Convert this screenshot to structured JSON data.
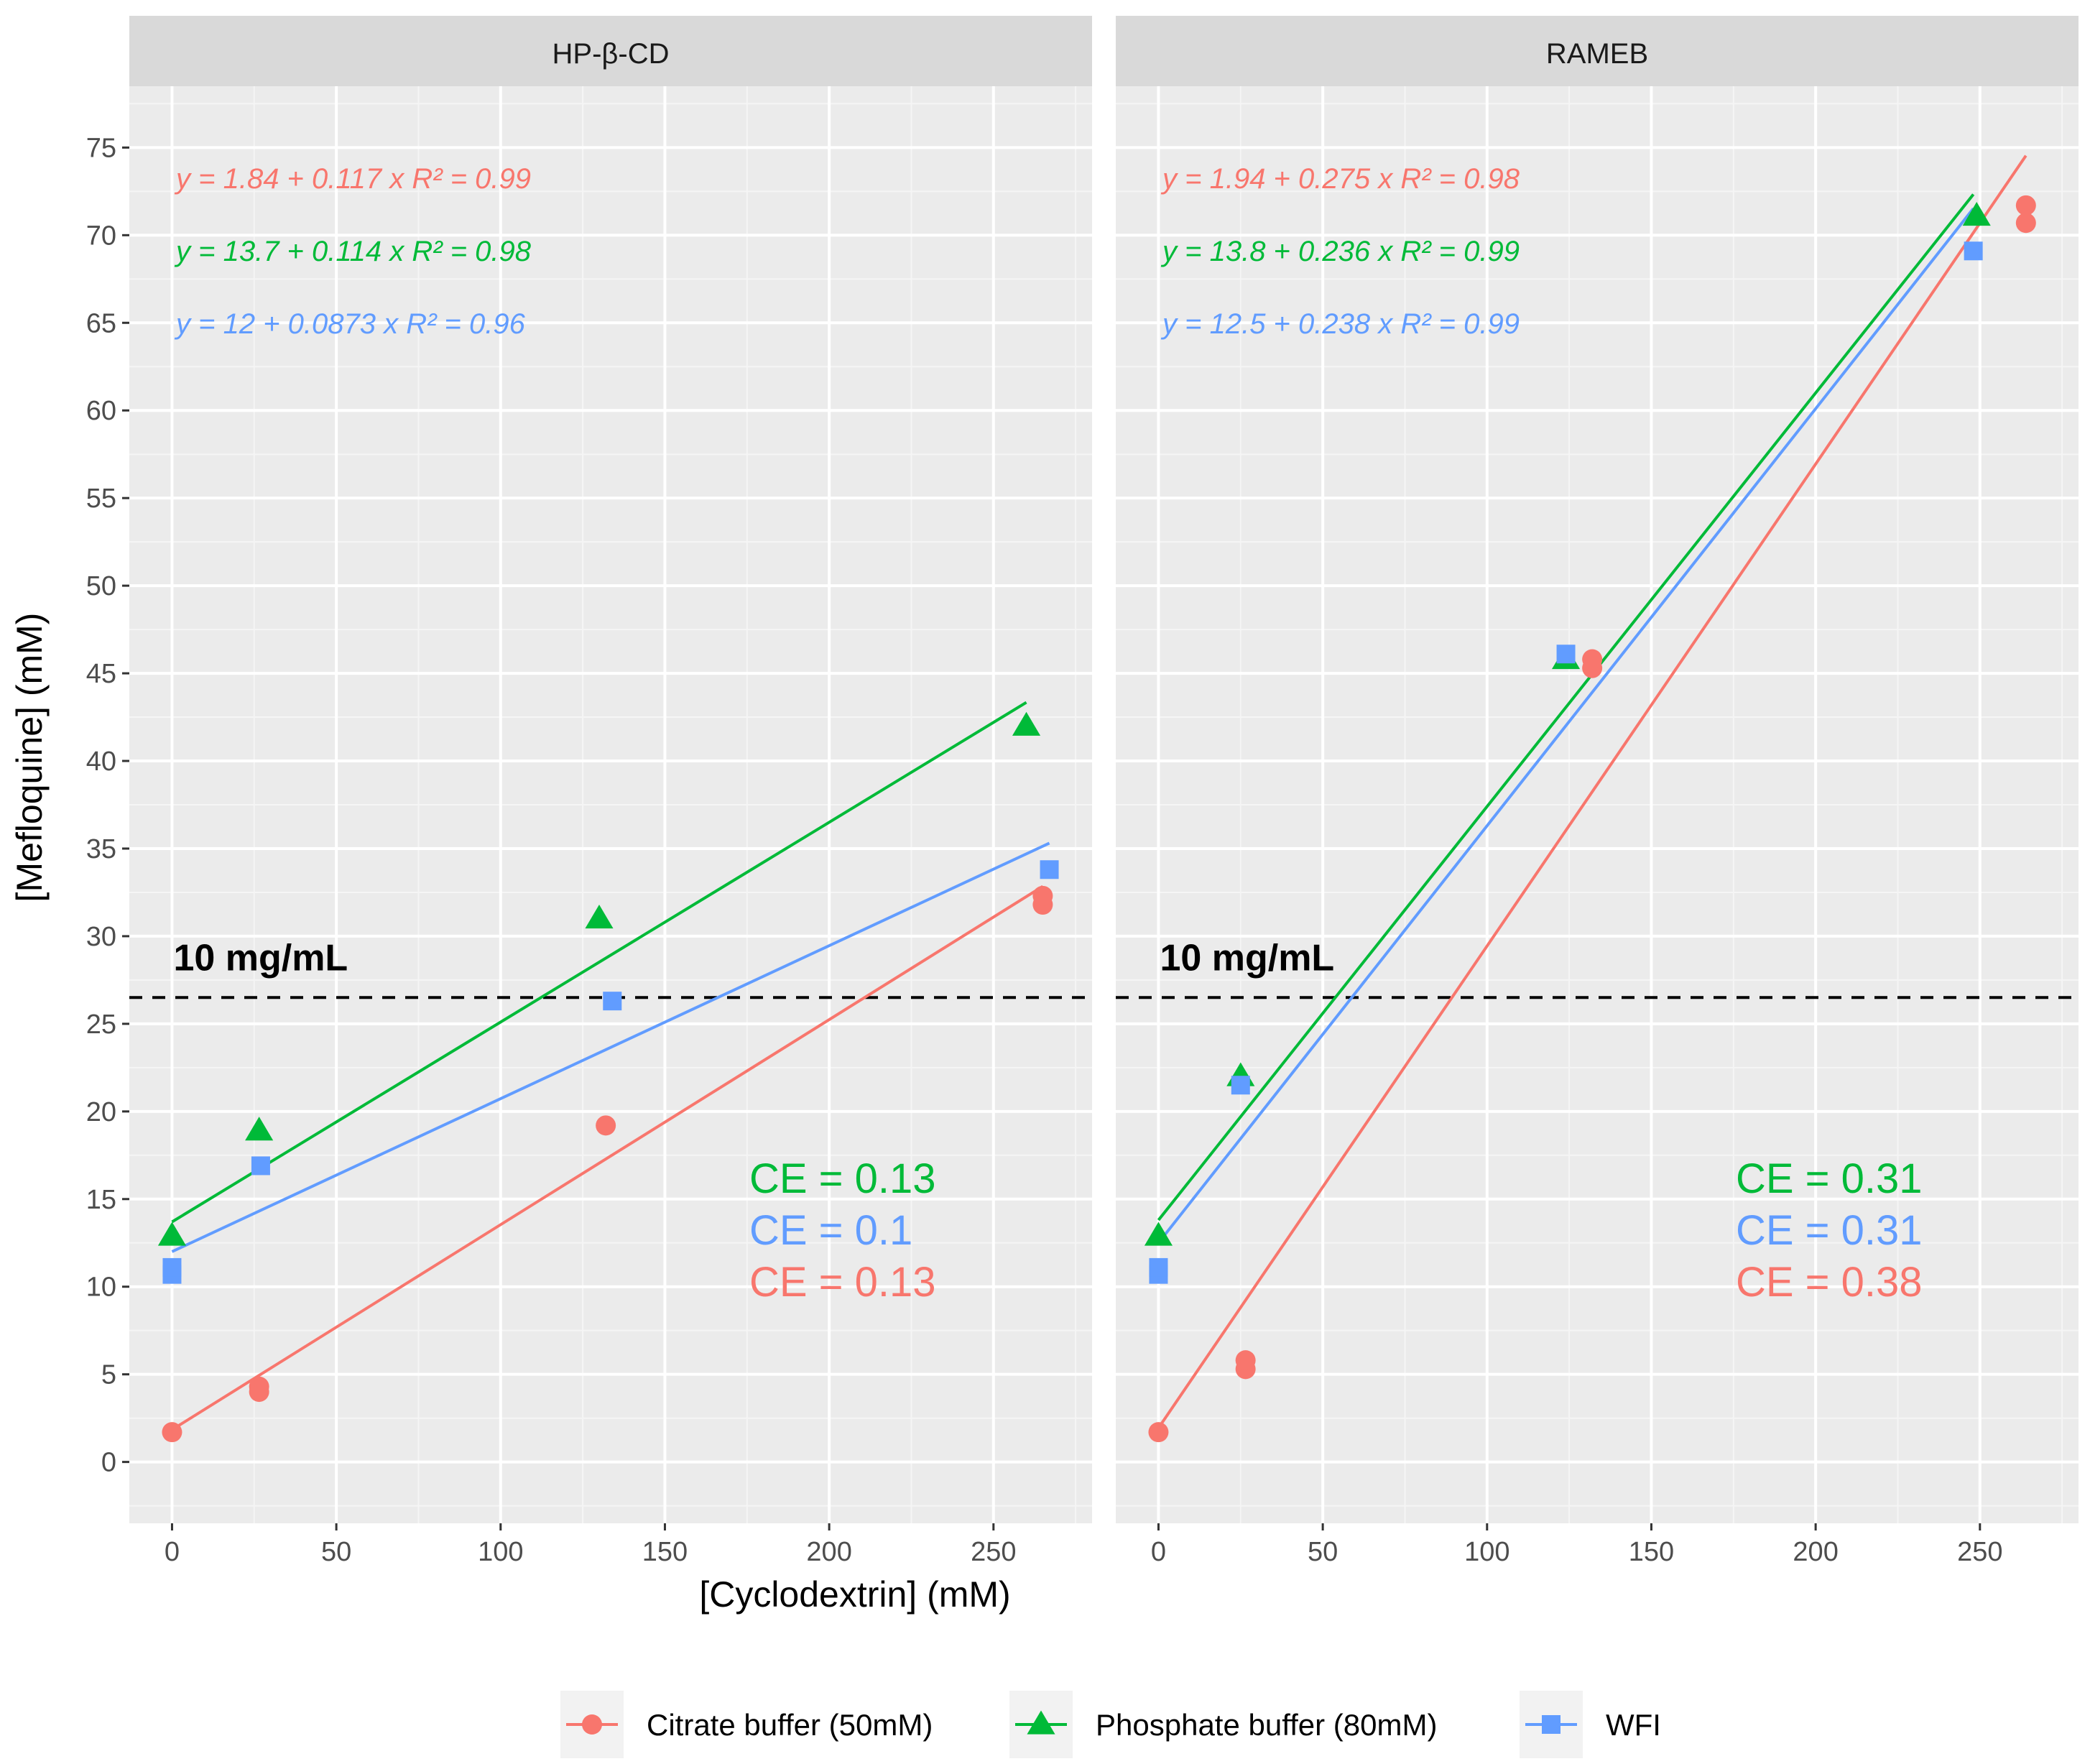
{
  "chart_data": {
    "type": "scatter",
    "xlabel": "[Cyclodextrin] (mM)",
    "ylabel": "[Mefloquine] (mM)",
    "xlim": [
      -13,
      280
    ],
    "ylim": [
      -3.5,
      78.5
    ],
    "xticks": [
      0,
      50,
      100,
      150,
      200,
      250
    ],
    "yticks": [
      0,
      5,
      10,
      15,
      20,
      25,
      30,
      35,
      40,
      45,
      50,
      55,
      60,
      65,
      70,
      75
    ],
    "xtick_labels": [
      "0",
      "50",
      "100",
      "150",
      "200",
      "250"
    ],
    "ytick_labels": [
      "0",
      "5",
      "10",
      "15",
      "20",
      "25",
      "30",
      "35",
      "40",
      "45",
      "50",
      "55",
      "60",
      "65",
      "70",
      "75"
    ],
    "grid": true,
    "legend": {
      "position": "bottom",
      "items": [
        {
          "name": "Citrate buffer (50mM)",
          "color": "#F8766D",
          "shape": "circle"
        },
        {
          "name": "Phosphate buffer (80mM)",
          "color": "#00BA38",
          "shape": "triangle"
        },
        {
          "name": "WFI",
          "color": "#619CFF",
          "shape": "square"
        }
      ]
    },
    "reference_line": {
      "y": 26.5,
      "label": "10 mg/mL",
      "style": "dashed"
    },
    "panels": [
      {
        "title": "HP-β-CD",
        "series": [
          {
            "name": "Citrate buffer (50mM)",
            "color": "#F8766D",
            "shape": "circle",
            "points": [
              [
                0,
                1.7
              ],
              [
                26.5,
                4.0
              ],
              [
                26.5,
                4.3
              ],
              [
                132,
                19.2
              ],
              [
                265,
                31.8
              ],
              [
                265,
                32.3
              ]
            ],
            "fit": {
              "intercept": 1.84,
              "slope": 0.117,
              "x_range": [
                0,
                265
              ]
            },
            "equation": "y = 1.84 + 0.117 x   R² = 0.99",
            "ce": "CE = 0.13"
          },
          {
            "name": "Phosphate buffer (80mM)",
            "color": "#00BA38",
            "shape": "triangle",
            "points": [
              [
                0,
                12.9
              ],
              [
                26.5,
                18.9
              ],
              [
                130,
                31.0
              ],
              [
                260,
                42.0
              ]
            ],
            "fit": {
              "intercept": 13.7,
              "slope": 0.114,
              "x_range": [
                0,
                260
              ]
            },
            "equation": "y = 13.7 + 0.114 x   R² = 0.98",
            "ce": "CE = 0.13"
          },
          {
            "name": "WFI",
            "color": "#619CFF",
            "shape": "square",
            "points": [
              [
                0,
                10.7
              ],
              [
                0,
                11.1
              ],
              [
                27,
                16.9
              ],
              [
                134,
                26.3
              ],
              [
                267,
                33.8
              ]
            ],
            "fit": {
              "intercept": 12.0,
              "slope": 0.0873,
              "x_range": [
                0,
                267
              ]
            },
            "equation": "y = 12 + 0.0873 x   R² = 0.96",
            "ce": "CE = 0.1"
          }
        ],
        "ce_order": [
          "Phosphate buffer (80mM)",
          "WFI",
          "Citrate buffer (50mM)"
        ]
      },
      {
        "title": "RAMEB",
        "series": [
          {
            "name": "Citrate buffer (50mM)",
            "color": "#F8766D",
            "shape": "circle",
            "points": [
              [
                0,
                1.7
              ],
              [
                26.5,
                5.3
              ],
              [
                26.5,
                5.8
              ],
              [
                132,
                45.3
              ],
              [
                132,
                45.8
              ],
              [
                264,
                70.7
              ],
              [
                264,
                71.7
              ]
            ],
            "fit": {
              "intercept": 1.94,
              "slope": 0.275,
              "x_range": [
                0,
                264
              ]
            },
            "equation": "y = 1.94 + 0.275 x   R² = 0.98",
            "ce": "CE = 0.38"
          },
          {
            "name": "Phosphate buffer (80mM)",
            "color": "#00BA38",
            "shape": "triangle",
            "points": [
              [
                0,
                12.9
              ],
              [
                25,
                22.0
              ],
              [
                124,
                45.8
              ],
              [
                249,
                71.1
              ]
            ],
            "fit": {
              "intercept": 13.8,
              "slope": 0.236,
              "x_range": [
                0,
                248
              ]
            },
            "equation": "y = 13.8 + 0.236 x   R² = 0.99",
            "ce": "CE = 0.31"
          },
          {
            "name": "WFI",
            "color": "#619CFF",
            "shape": "square",
            "points": [
              [
                0,
                10.7
              ],
              [
                0,
                11.1
              ],
              [
                25,
                21.5
              ],
              [
                124,
                46.1
              ],
              [
                248,
                69.1
              ]
            ],
            "fit": {
              "intercept": 12.5,
              "slope": 0.238,
              "x_range": [
                0,
                248
              ]
            },
            "equation": "y = 12.5 + 0.238 x   R² = 0.99",
            "ce": "CE = 0.31"
          }
        ],
        "ce_order": [
          "Phosphate buffer (80mM)",
          "WFI",
          "Citrate buffer (50mM)"
        ]
      }
    ]
  }
}
